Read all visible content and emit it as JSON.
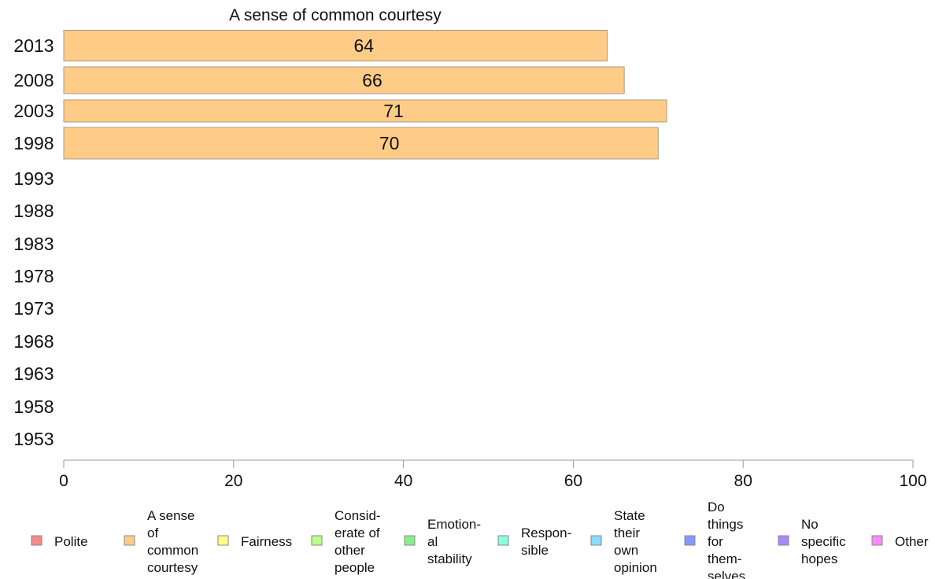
{
  "chart_data": {
    "type": "bar",
    "orientation": "horizontal",
    "title": "A sense of common courtesy",
    "categories": [
      "2013",
      "2008",
      "2003",
      "1998",
      "1993",
      "1988",
      "1983",
      "1978",
      "1973",
      "1968",
      "1963",
      "1958",
      "1953"
    ],
    "series": [
      {
        "name": "A sense of common courtesy",
        "color": "#ffcc88",
        "values": [
          64,
          66,
          71,
          70,
          null,
          null,
          null,
          null,
          null,
          null,
          null,
          null,
          null
        ]
      }
    ],
    "xlim": [
      0,
      100
    ],
    "xticks": [
      0,
      20,
      40,
      60,
      80,
      100
    ],
    "grid": false,
    "legend_position": "bottom"
  },
  "legend": [
    {
      "label": "Polite",
      "color": "#f48a8a"
    },
    {
      "label": "A sense of common courtesy",
      "color": "#ffcc88"
    },
    {
      "label": "Fairness",
      "color": "#ffff88"
    },
    {
      "label": "Considerate of other people",
      "color": "#bbff88"
    },
    {
      "label": "Emotional stability",
      "color": "#88ee88"
    },
    {
      "label": "Responsible",
      "color": "#88ffdd"
    },
    {
      "label": "State their own opinion",
      "color": "#88ddff"
    },
    {
      "label": "Do things for themselves",
      "color": "#8899ff"
    },
    {
      "label": "No specific hopes",
      "color": "#aa88ff"
    },
    {
      "label": "Other",
      "color": "#ff88ff"
    }
  ]
}
